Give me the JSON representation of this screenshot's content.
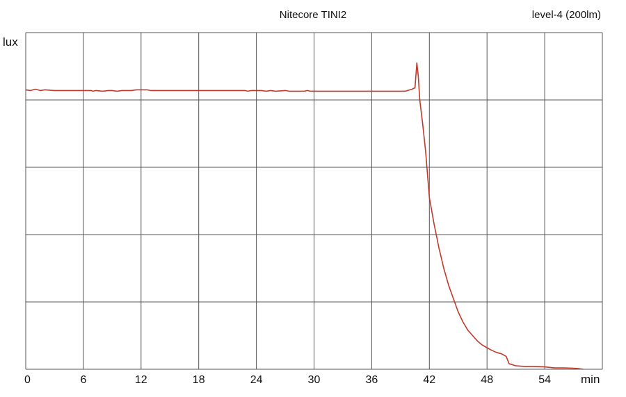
{
  "chart_data": {
    "type": "line",
    "title": "Nitecore TINI2",
    "subtitle": "level-4  (200lm)",
    "xlabel": "min",
    "ylabel": "lux",
    "xlim": [
      0,
      60
    ],
    "ylim": [
      0,
      5
    ],
    "x_ticks": [
      "0",
      "6",
      "12",
      "18",
      "24",
      "30",
      "36",
      "42",
      "48",
      "54"
    ],
    "grid": true,
    "line_color": "#c0392b",
    "grid_color": "#555555",
    "series": [
      {
        "values": [
          [
            0,
            4.15
          ],
          [
            0.5,
            4.14
          ],
          [
            1,
            4.16
          ],
          [
            1.5,
            4.14
          ],
          [
            2,
            4.15
          ],
          [
            3,
            4.14
          ],
          [
            4,
            4.14
          ],
          [
            5,
            4.14
          ],
          [
            6,
            4.14
          ],
          [
            6.8,
            4.14
          ],
          [
            7,
            4.13
          ],
          [
            7.3,
            4.14
          ],
          [
            8,
            4.13
          ],
          [
            8.6,
            4.14
          ],
          [
            9,
            4.14
          ],
          [
            9.5,
            4.13
          ],
          [
            10,
            4.14
          ],
          [
            11,
            4.14
          ],
          [
            11.5,
            4.15
          ],
          [
            12,
            4.15
          ],
          [
            12.6,
            4.15
          ],
          [
            13,
            4.14
          ],
          [
            14,
            4.14
          ],
          [
            16,
            4.14
          ],
          [
            18,
            4.14
          ],
          [
            20,
            4.14
          ],
          [
            22,
            4.14
          ],
          [
            22.8,
            4.14
          ],
          [
            23.1,
            4.13
          ],
          [
            23.5,
            4.14
          ],
          [
            24,
            4.14
          ],
          [
            24.5,
            4.14
          ],
          [
            25,
            4.13
          ],
          [
            25.5,
            4.14
          ],
          [
            26,
            4.13
          ],
          [
            27,
            4.14
          ],
          [
            27.4,
            4.13
          ],
          [
            28,
            4.13
          ],
          [
            29,
            4.13
          ],
          [
            29.3,
            4.14
          ],
          [
            29.6,
            4.13
          ],
          [
            30,
            4.13
          ],
          [
            32,
            4.13
          ],
          [
            34,
            4.13
          ],
          [
            36,
            4.13
          ],
          [
            38,
            4.13
          ],
          [
            39.5,
            4.13
          ],
          [
            40.2,
            4.16
          ],
          [
            40.5,
            4.18
          ],
          [
            40.7,
            4.55
          ],
          [
            40.85,
            4.35
          ],
          [
            41,
            4.0
          ],
          [
            41.3,
            3.65
          ],
          [
            41.6,
            3.25
          ],
          [
            42,
            2.55
          ],
          [
            42.5,
            2.15
          ],
          [
            43,
            1.8
          ],
          [
            43.5,
            1.5
          ],
          [
            44,
            1.25
          ],
          [
            44.5,
            1.05
          ],
          [
            45,
            0.85
          ],
          [
            45.5,
            0.7
          ],
          [
            46,
            0.58
          ],
          [
            46.5,
            0.5
          ],
          [
            47,
            0.42
          ],
          [
            47.5,
            0.36
          ],
          [
            48,
            0.32
          ],
          [
            48.5,
            0.28
          ],
          [
            49,
            0.25
          ],
          [
            49.5,
            0.23
          ],
          [
            50,
            0.19
          ],
          [
            50.3,
            0.08
          ],
          [
            50.6,
            0.07
          ],
          [
            51,
            0.05
          ],
          [
            52,
            0.04
          ],
          [
            53,
            0.04
          ],
          [
            54,
            0.035
          ],
          [
            55,
            0.02
          ],
          [
            56,
            0.02
          ],
          [
            57,
            0.015
          ],
          [
            57.5,
            0.01
          ],
          [
            58,
            0.0
          ]
        ]
      }
    ]
  }
}
